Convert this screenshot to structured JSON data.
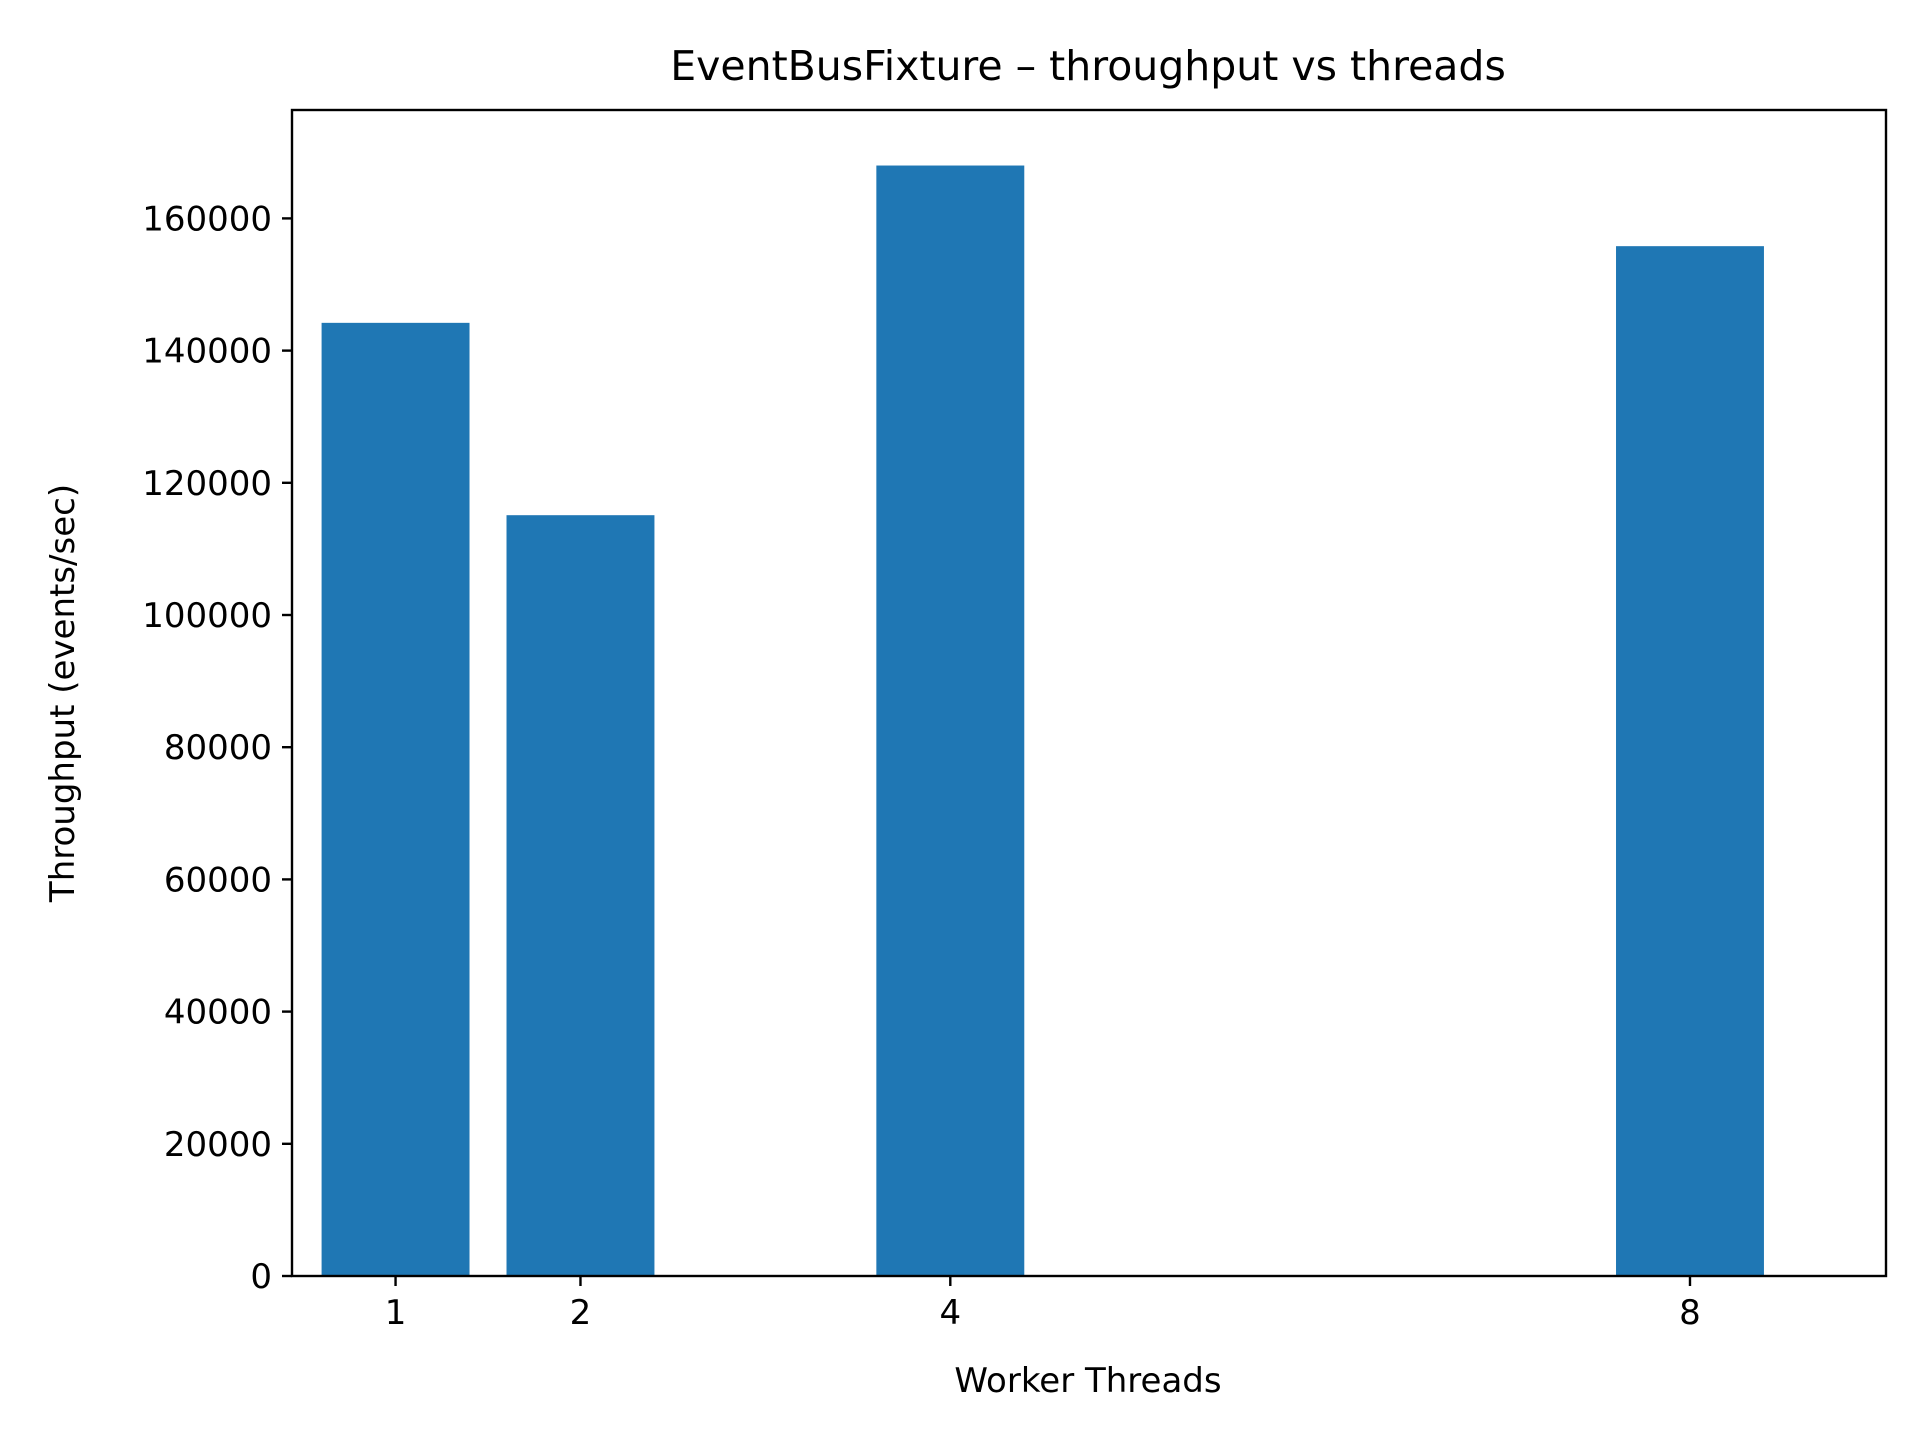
{
  "chart_data": {
    "type": "bar",
    "title": "EventBusFixture – throughput vs threads",
    "xlabel": "Worker Threads",
    "ylabel": "Throughput (events/sec)",
    "categories": [
      "1",
      "2",
      "4",
      "8"
    ],
    "x": [
      1,
      2,
      4,
      8
    ],
    "values": [
      144200,
      115100,
      168000,
      155800
    ],
    "bar_width": 0.8,
    "xlim": [
      0.44,
      9.06
    ],
    "ylim": [
      0,
      176400
    ],
    "yticks": [
      0,
      20000,
      40000,
      60000,
      80000,
      100000,
      120000,
      140000,
      160000
    ],
    "grid": false,
    "legend": "none",
    "bar_color": "#1f77b4"
  }
}
